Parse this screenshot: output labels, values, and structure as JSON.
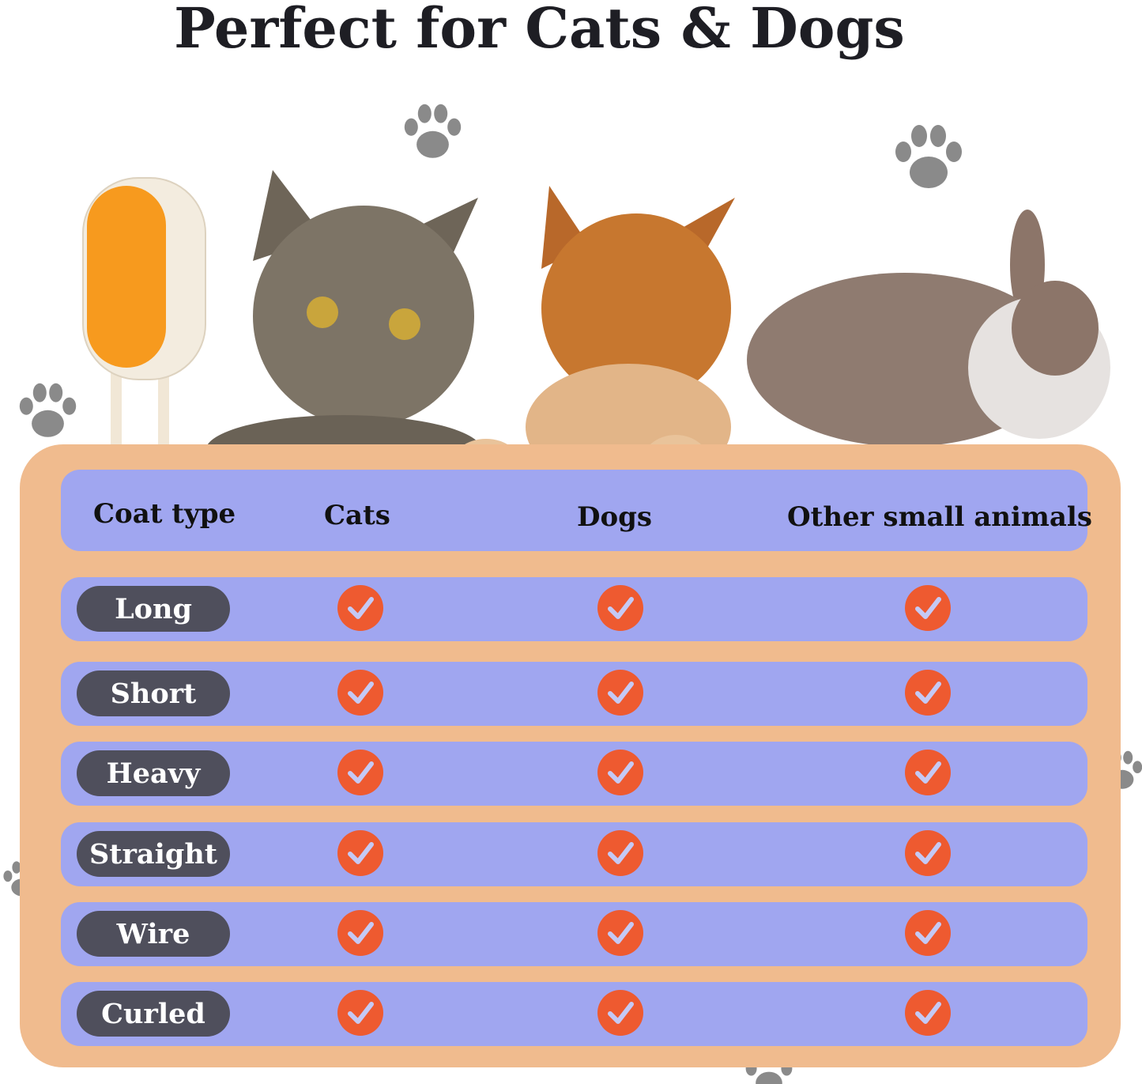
{
  "title": "Perfect for Cats & Dogs",
  "colors": {
    "panel": "#f0bb8e",
    "row": "#a0a6f0",
    "pill": "#4f4f5c",
    "check": "#ee5a30"
  },
  "table": {
    "headers": [
      "Coat type",
      "Cats",
      "Dogs",
      "Other small animals"
    ],
    "rows": [
      {
        "label": "Long",
        "cats": true,
        "dogs": true,
        "other": true
      },
      {
        "label": "Short",
        "cats": true,
        "dogs": true,
        "other": true
      },
      {
        "label": "Heavy",
        "cats": true,
        "dogs": true,
        "other": true
      },
      {
        "label": "Straight",
        "cats": true,
        "dogs": true,
        "other": true
      },
      {
        "label": "Wire",
        "cats": true,
        "dogs": true,
        "other": true
      },
      {
        "label": "Curled",
        "cats": true,
        "dogs": true,
        "other": true
      }
    ]
  },
  "icons": {
    "check": "check-circle-icon",
    "paw": "paw-print-icon"
  }
}
